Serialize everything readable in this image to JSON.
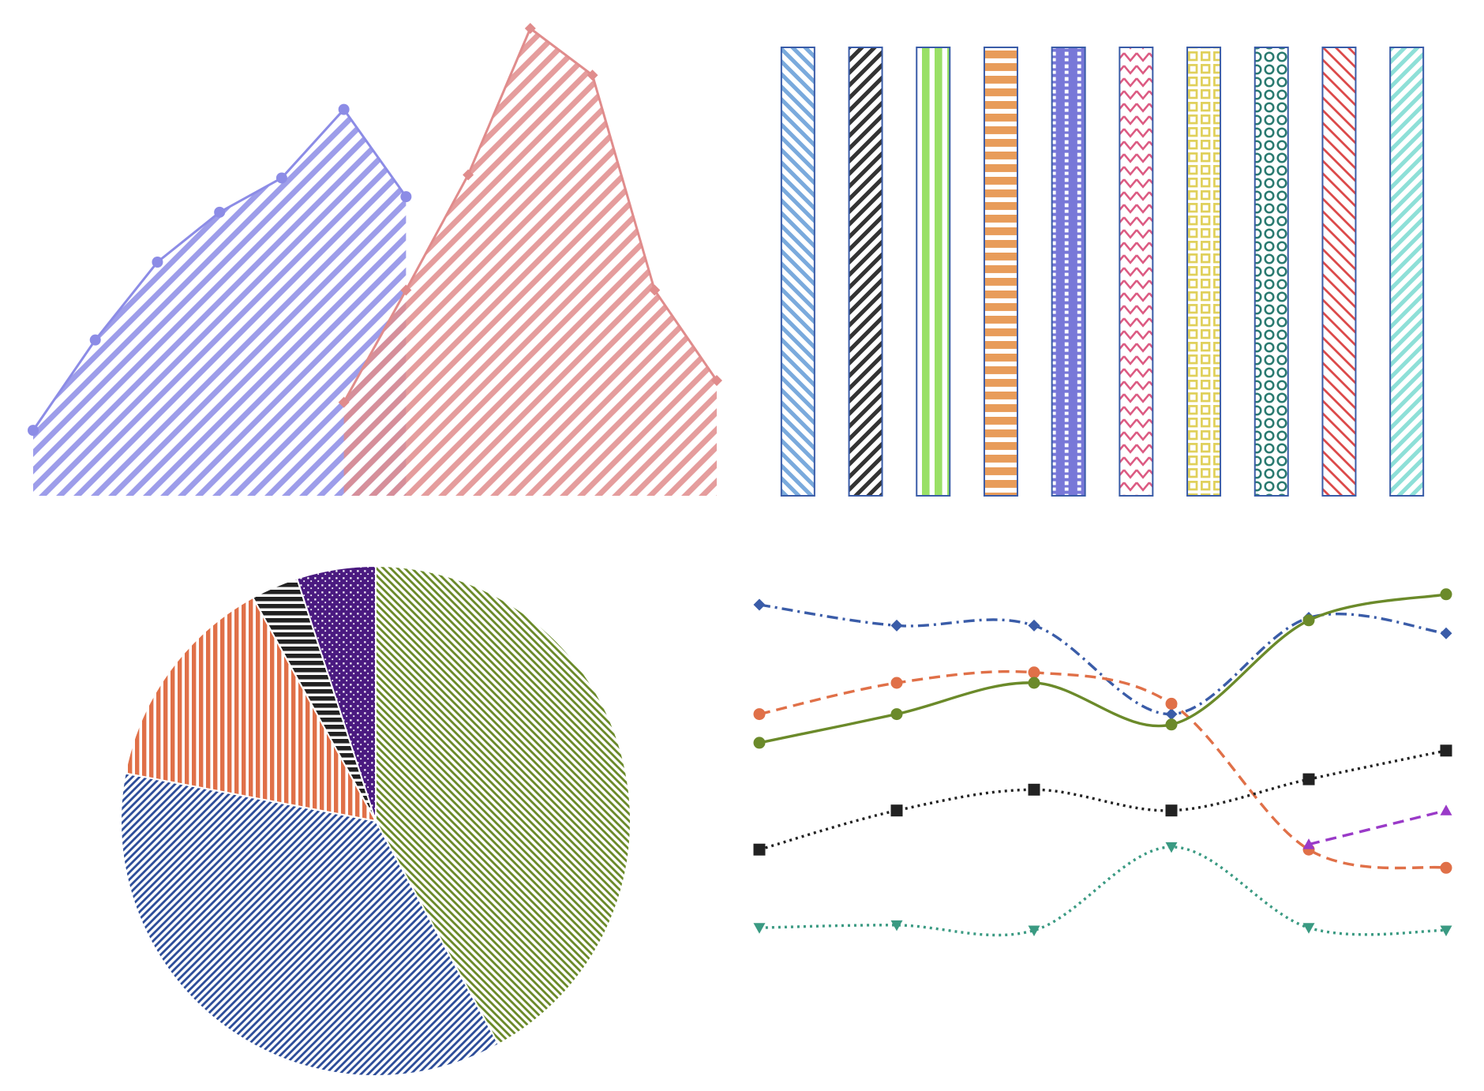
{
  "chart_data": [
    {
      "type": "area",
      "position": "top-left",
      "axes_visible": false,
      "xlim": [
        0,
        11
      ],
      "ylim": [
        0,
        15
      ],
      "series": [
        {
          "color": "#8c8ce6",
          "hatch": "diagonal-up",
          "marker": "circle",
          "points": [
            [
              0,
              2.1
            ],
            [
              1,
              5.0
            ],
            [
              2,
              7.5
            ],
            [
              3,
              9.1
            ],
            [
              4,
              10.2
            ],
            [
              5,
              12.4
            ],
            [
              6,
              9.6
            ]
          ]
        },
        {
          "color": "#e08c8c",
          "hatch": "diagonal-up",
          "marker": "diamond",
          "points": [
            [
              5,
              3.0
            ],
            [
              6,
              6.6
            ],
            [
              7,
              10.3
            ],
            [
              8,
              15.0
            ],
            [
              9,
              13.5
            ],
            [
              10,
              6.6
            ],
            [
              11,
              3.7
            ]
          ]
        }
      ]
    },
    {
      "type": "bar",
      "position": "top-right",
      "axes_visible": false,
      "ylim": [
        0,
        1
      ],
      "bars": [
        {
          "value": 1,
          "color": "#7aaadd",
          "hatch": "diag-back"
        },
        {
          "value": 1,
          "color": "#333333",
          "hatch": "diag-forward"
        },
        {
          "value": 1,
          "color": "#99e066",
          "hatch": "vertical"
        },
        {
          "value": 1,
          "color": "#e89c5a",
          "hatch": "horizontal"
        },
        {
          "value": 1,
          "color": "#7878d8",
          "hatch": "grid-dots"
        },
        {
          "value": 1,
          "color": "#dc5a82",
          "hatch": "zigzag"
        },
        {
          "value": 1,
          "color": "#e0d05a",
          "hatch": "squares"
        },
        {
          "value": 1,
          "color": "#2a7a70",
          "hatch": "circles"
        },
        {
          "value": 1,
          "color": "#dc4a4a",
          "hatch": "diag-back-thin"
        },
        {
          "value": 1,
          "color": "#8ee0d8",
          "hatch": "diag-forward"
        }
      ]
    },
    {
      "type": "pie",
      "position": "bottom-left",
      "start": "top",
      "direction": "clockwise",
      "slices": [
        {
          "value": 42.0,
          "color": "#6b8a2a",
          "hatch": "diag-back"
        },
        {
          "value": 36.0,
          "color": "#2e4e9a",
          "hatch": "diag-forward"
        },
        {
          "value": 14.0,
          "color": "#e07048",
          "hatch": "vertical"
        },
        {
          "value": 3.0,
          "color": "#222222",
          "hatch": "horizontal"
        },
        {
          "value": 5.0,
          "color": "#4a1a80",
          "hatch": "dots"
        }
      ]
    },
    {
      "type": "line",
      "position": "bottom-right",
      "axes_visible": false,
      "x": [
        0,
        1,
        2,
        3,
        4,
        5
      ],
      "ylim": [
        0,
        10
      ],
      "series": [
        {
          "color": "#3a5ca8",
          "linestyle": "dashdot",
          "marker": "diamond",
          "values": [
            9.0,
            8.6,
            8.6,
            6.9,
            8.75,
            8.45
          ]
        },
        {
          "color": "#e07048",
          "linestyle": "dashed",
          "marker": "circle",
          "values": [
            6.9,
            7.5,
            7.7,
            7.1,
            4.3,
            3.95
          ]
        },
        {
          "color": "#6b8a2a",
          "linestyle": "solid",
          "marker": "circle",
          "values": [
            6.35,
            6.9,
            7.5,
            6.7,
            8.7,
            9.2
          ]
        },
        {
          "color": "#222222",
          "linestyle": "dotted",
          "marker": "square",
          "values": [
            4.3,
            5.05,
            5.45,
            5.05,
            5.65,
            6.2
          ]
        },
        {
          "color": "#9a3ac8",
          "linestyle": "dashed",
          "marker": "triangle-up",
          "values": [
            null,
            null,
            null,
            null,
            4.4,
            5.05
          ]
        },
        {
          "color": "#3a9a82",
          "linestyle": "dotted",
          "marker": "triangle-down",
          "values": [
            2.8,
            2.85,
            2.75,
            4.35,
            2.8,
            2.75
          ]
        }
      ]
    }
  ]
}
